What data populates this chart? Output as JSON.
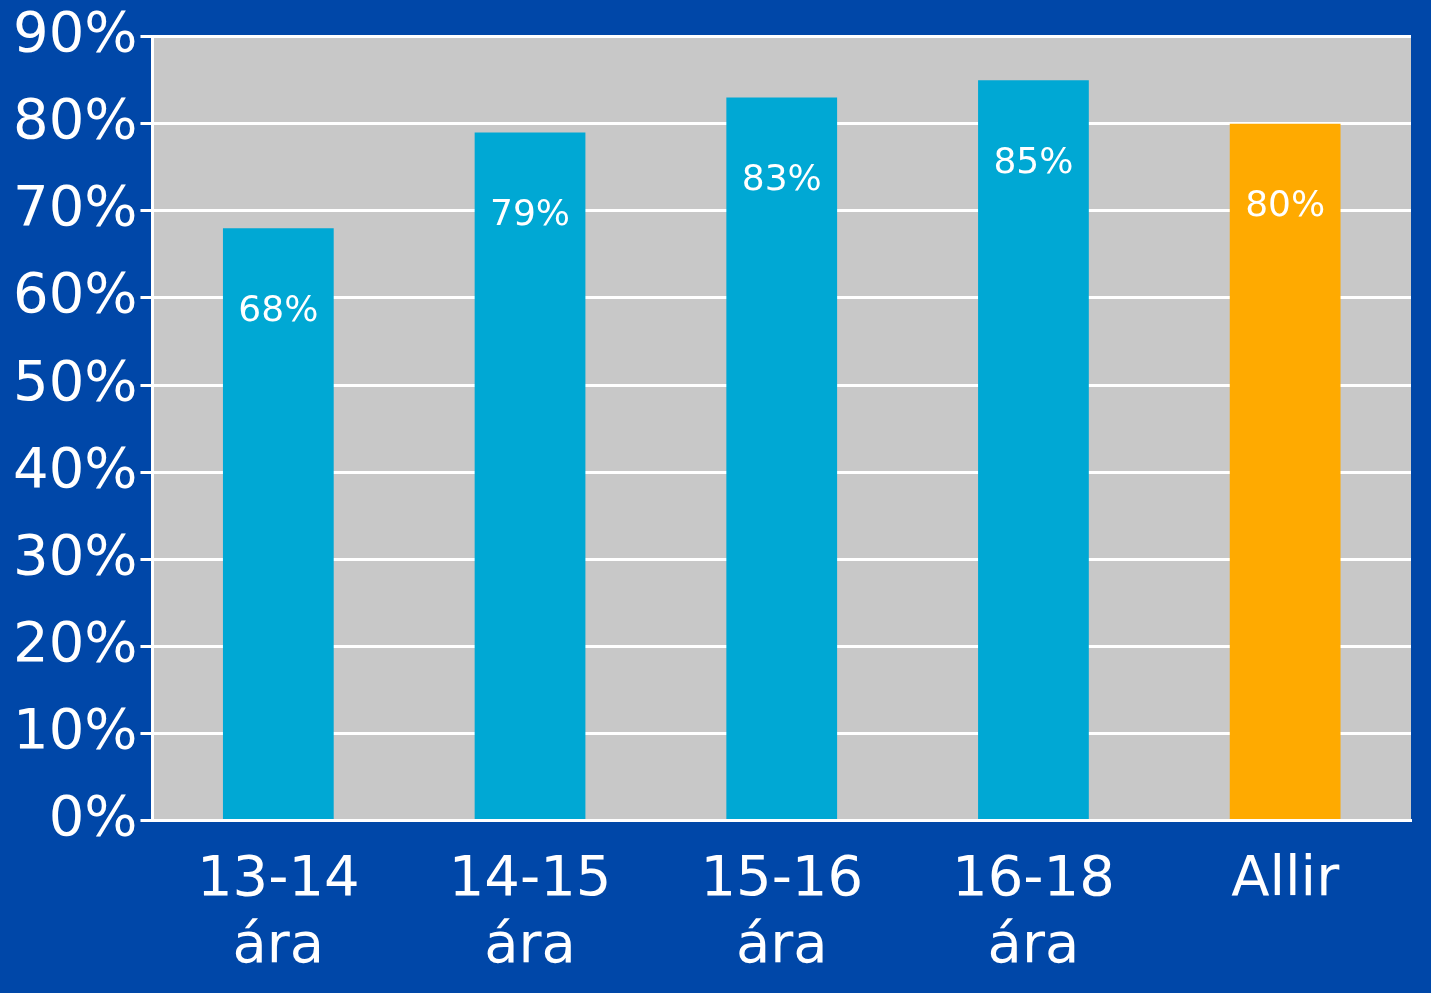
{
  "chart_data": {
    "type": "bar",
    "categories": [
      "13-14 ára",
      "14-15 ára",
      "15-16 ára",
      "16-18 ára",
      "Allir"
    ],
    "values": [
      68,
      79,
      83,
      85,
      80
    ],
    "colors": [
      "#00a8d4",
      "#00a8d4",
      "#00a8d4",
      "#00a8d4",
      "#ffaa00"
    ],
    "value_labels": [
      "68%",
      "79%",
      "83%",
      "85%",
      "80%"
    ],
    "ylim": [
      0,
      90
    ],
    "yticks": [
      {
        "value": 0,
        "label": "0%"
      },
      {
        "value": 10,
        "label": "10%"
      },
      {
        "value": 20,
        "label": "20%"
      },
      {
        "value": 30,
        "label": "30%"
      },
      {
        "value": 40,
        "label": "40%"
      },
      {
        "value": 50,
        "label": "50%"
      },
      {
        "value": 60,
        "label": "60%"
      },
      {
        "value": 70,
        "label": "70%"
      },
      {
        "value": 80,
        "label": "80%"
      },
      {
        "value": 90,
        "label": "90%"
      }
    ],
    "grid": "y",
    "legend": false
  }
}
